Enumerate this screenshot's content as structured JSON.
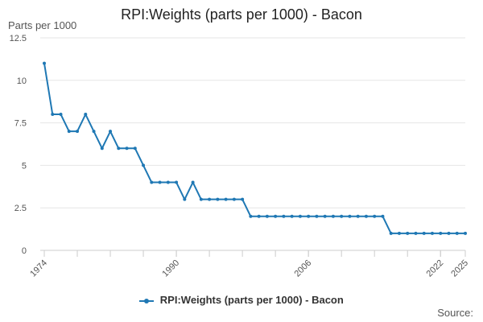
{
  "chart_data": {
    "type": "line",
    "title": "RPI:Weights (parts per 1000) - Bacon",
    "ylabel": "Parts per 1000",
    "xlabel": "",
    "ylim": [
      0,
      12.5
    ],
    "yticks": [
      "0",
      "2.5",
      "5",
      "7.5",
      "10",
      "12.5"
    ],
    "xlim": [
      1974,
      2025
    ],
    "xticks": [
      "1974",
      "1990",
      "2006",
      "2022",
      "2025"
    ],
    "grid": "horizontal",
    "legend": "bottom-center",
    "series": [
      {
        "name": "RPI:Weights (parts per 1000) - Bacon",
        "color": "#1f78b4",
        "x": [
          1974,
          1975,
          1976,
          1977,
          1978,
          1979,
          1980,
          1981,
          1982,
          1983,
          1984,
          1985,
          1986,
          1987,
          1988,
          1989,
          1990,
          1991,
          1992,
          1993,
          1994,
          1995,
          1996,
          1997,
          1998,
          1999,
          2000,
          2001,
          2002,
          2003,
          2004,
          2005,
          2006,
          2007,
          2008,
          2009,
          2010,
          2011,
          2012,
          2013,
          2014,
          2015,
          2016,
          2017,
          2018,
          2019,
          2020,
          2021,
          2022,
          2023,
          2024,
          2025
        ],
        "values": [
          11,
          8,
          8,
          7,
          7,
          8,
          7,
          6,
          7,
          6,
          6,
          6,
          5,
          4,
          4,
          4,
          4,
          3,
          4,
          3,
          3,
          3,
          3,
          3,
          3,
          2,
          2,
          2,
          2,
          2,
          2,
          2,
          2,
          2,
          2,
          2,
          2,
          2,
          2,
          2,
          2,
          2,
          1,
          1,
          1,
          1,
          1,
          1,
          1,
          1,
          1,
          1
        ]
      }
    ]
  },
  "source_label": "Source:"
}
